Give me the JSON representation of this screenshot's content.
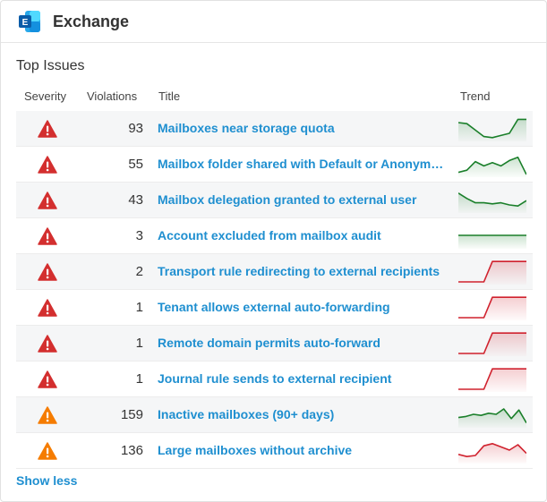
{
  "app": {
    "title": "Exchange",
    "logo_icon": "exchange-logo-icon"
  },
  "section": {
    "title": "Top Issues"
  },
  "columns": {
    "severity": "Severity",
    "violations": "Violations",
    "title": "Title",
    "trend": "Trend"
  },
  "colors": {
    "critical": "#d32f2f",
    "warning": "#f57c00",
    "link": "#1f8fd0",
    "trend_up": "#1a7f2a",
    "trend_down": "#d0222e"
  },
  "issues": [
    {
      "severity": "critical",
      "violations": "93",
      "title": "Mailboxes near storage quota",
      "trend_color": "green",
      "trend": [
        0.75,
        0.7,
        0.4,
        0.1,
        0.05,
        0.15,
        0.25,
        0.9,
        0.9
      ]
    },
    {
      "severity": "critical",
      "violations": "55",
      "title": "Mailbox folder shared with Default or Anonymous",
      "trend_color": "green",
      "trend": [
        0.1,
        0.2,
        0.6,
        0.4,
        0.55,
        0.4,
        0.65,
        0.8,
        0.0
      ]
    },
    {
      "severity": "critical",
      "violations": "43",
      "title": "Mailbox delegation granted to external user",
      "trend_color": "green",
      "trend": [
        0.8,
        0.55,
        0.35,
        0.35,
        0.3,
        0.35,
        0.25,
        0.2,
        0.45
      ]
    },
    {
      "severity": "critical",
      "violations": "3",
      "title": "Account excluded from mailbox audit",
      "trend_color": "green",
      "trend": [
        0.5,
        0.5,
        0.5,
        0.5,
        0.5,
        0.5,
        0.5,
        0.5,
        0.5
      ]
    },
    {
      "severity": "critical",
      "violations": "2",
      "title": "Transport rule redirecting to external recipients",
      "trend_color": "red",
      "trend": [
        0,
        0,
        0,
        0,
        0.95,
        0.95,
        0.95,
        0.95,
        0.95
      ]
    },
    {
      "severity": "critical",
      "violations": "1",
      "title": "Tenant allows external auto-forwarding",
      "trend_color": "red",
      "trend": [
        0,
        0,
        0,
        0,
        0.95,
        0.95,
        0.95,
        0.95,
        0.95
      ]
    },
    {
      "severity": "critical",
      "violations": "1",
      "title": "Remote domain permits auto-forward",
      "trend_color": "red",
      "trend": [
        0,
        0,
        0,
        0,
        0.95,
        0.95,
        0.95,
        0.95,
        0.95
      ]
    },
    {
      "severity": "critical",
      "violations": "1",
      "title": "Journal rule sends to external recipient",
      "trend_color": "red",
      "trend": [
        0,
        0,
        0,
        0,
        0.95,
        0.95,
        0.95,
        0.95,
        0.95
      ]
    },
    {
      "severity": "warning",
      "violations": "159",
      "title": "Inactive mailboxes (90+ days)",
      "trend_color": "green",
      "trend": [
        0.35,
        0.4,
        0.5,
        0.45,
        0.55,
        0.5,
        0.75,
        0.3,
        0.7,
        0.1
      ]
    },
    {
      "severity": "warning",
      "violations": "136",
      "title": "Large mailboxes without archive",
      "trend_color": "red",
      "trend": [
        0.3,
        0.2,
        0.25,
        0.7,
        0.8,
        0.65,
        0.5,
        0.75,
        0.35
      ]
    }
  ],
  "footer": {
    "show_less": "Show less"
  }
}
